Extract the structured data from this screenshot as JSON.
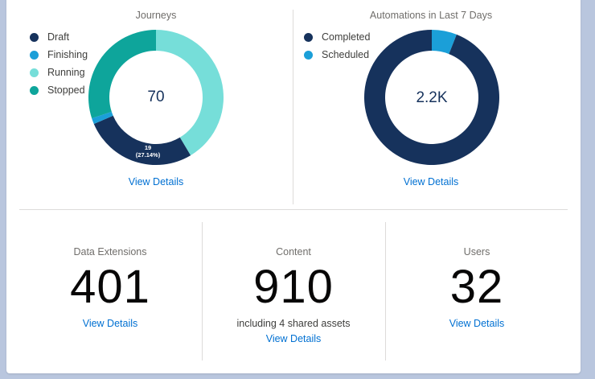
{
  "journeys": {
    "title": "Journeys",
    "center_value": "70",
    "segment_label_value": "19",
    "segment_label_pct": "(27.14%)",
    "view_details": "View Details",
    "legend": [
      {
        "label": "Draft",
        "color": "#16325c"
      },
      {
        "label": "Finishing",
        "color": "#1b9fd8"
      },
      {
        "label": "Running",
        "color": "#76ded9"
      },
      {
        "label": "Stopped",
        "color": "#0ea59b"
      }
    ]
  },
  "automations": {
    "title": "Automations in Last 7 Days",
    "center_value": "2.2K",
    "view_details": "View Details",
    "legend": [
      {
        "label": "Completed",
        "color": "#16325c"
      },
      {
        "label": "Scheduled",
        "color": "#1b9fd8"
      }
    ]
  },
  "stats": {
    "data_extensions": {
      "label": "Data Extensions",
      "value": "401",
      "view_details": "View Details"
    },
    "content": {
      "label": "Content",
      "value": "910",
      "subtext": "including 4 shared assets",
      "view_details": "View Details"
    },
    "users": {
      "label": "Users",
      "value": "32",
      "view_details": "View Details"
    }
  },
  "chart_data": [
    {
      "type": "pie",
      "title": "Journeys",
      "total": 70,
      "categories": [
        "Draft",
        "Finishing",
        "Running",
        "Stopped"
      ],
      "values": [
        19,
        1,
        29,
        21
      ]
    },
    {
      "type": "pie",
      "title": "Automations in Last 7 Days",
      "total_label": "2.2K",
      "categories": [
        "Completed",
        "Scheduled"
      ],
      "values": [
        94,
        6
      ]
    }
  ]
}
